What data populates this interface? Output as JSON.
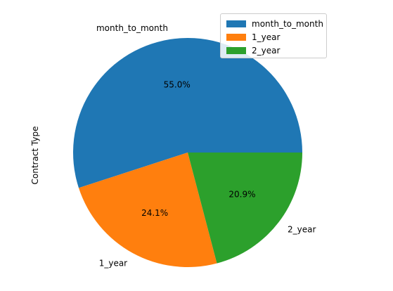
{
  "chart_data": {
    "type": "pie",
    "ylabel": "Contract Type",
    "slices": [
      {
        "label": "month_to_month",
        "value": 55.0,
        "pct_label": "55.0%",
        "color": "#1f77b4"
      },
      {
        "label": "1_year",
        "value": 24.1,
        "pct_label": "24.1%",
        "color": "#ff7f0e"
      },
      {
        "label": "2_year",
        "value": 20.9,
        "pct_label": "20.9%",
        "color": "#2ca02c"
      }
    ],
    "start_angle_deg": 0,
    "direction": "counterclockwise",
    "legend": {
      "position": "top-right",
      "entries": [
        "month_to_month",
        "1_year",
        "2_year"
      ]
    }
  }
}
